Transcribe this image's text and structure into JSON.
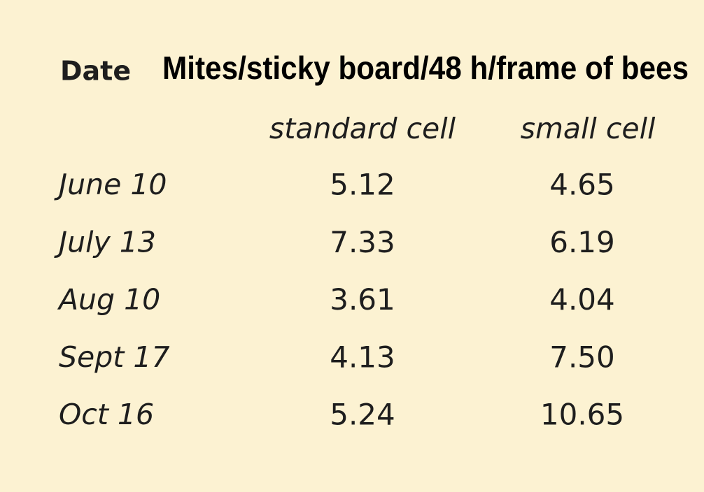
{
  "table": {
    "header": {
      "date": "Date",
      "title": "Mites/sticky board/48 h/frame of bees"
    },
    "columns": [
      "standard cell",
      "small cell"
    ],
    "rows": [
      [
        "June 10",
        "5.12",
        "4.65"
      ],
      [
        "July 13",
        "7.33",
        "6.19"
      ],
      [
        "Aug 10",
        "3.61",
        "4.04"
      ],
      [
        "Sept 17",
        "4.13",
        "7.50"
      ],
      [
        "Oct 16",
        "5.24",
        "10.65"
      ]
    ]
  }
}
